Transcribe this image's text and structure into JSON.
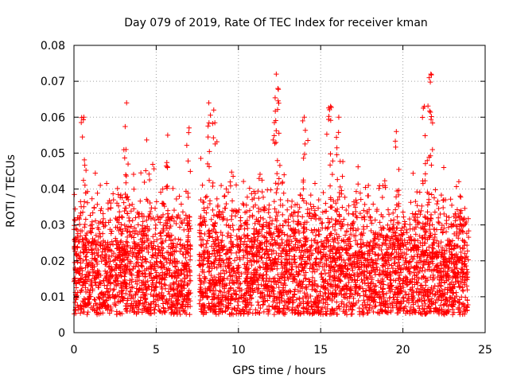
{
  "chart_data": {
    "type": "scatter",
    "title": "Day 079 of 2019, Rate Of TEC Index for receiver kman",
    "xlabel": "GPS time / hours",
    "ylabel": "ROTI / TECUs",
    "xlim": [
      0,
      25
    ],
    "ylim": [
      0,
      0.08
    ],
    "x_ticks": [
      0,
      5,
      10,
      15,
      20,
      25
    ],
    "x_tick_labels": [
      "0",
      "5",
      "10",
      "15",
      "20",
      "25"
    ],
    "y_ticks": [
      0,
      0.01,
      0.02,
      0.03,
      0.04,
      0.05,
      0.06,
      0.07,
      0.08
    ],
    "y_tick_labels": [
      "0",
      "0.01",
      "0.02",
      "0.03",
      "0.04",
      "0.05",
      "0.06",
      "0.07",
      "0.08"
    ],
    "grid": true,
    "marker": "+",
    "color": "#ff0000",
    "data_gaps_hours": [
      [
        7.1,
        7.6
      ]
    ],
    "x_range_of_data": [
      0.0,
      24.0
    ],
    "bulk_range": [
      0.005,
      0.025
    ],
    "notable_peaks": [
      {
        "x": 0.6,
        "y": 0.06
      },
      {
        "x": 3.2,
        "y": 0.064
      },
      {
        "x": 5.7,
        "y": 0.055
      },
      {
        "x": 7.0,
        "y": 0.057
      },
      {
        "x": 8.2,
        "y": 0.064
      },
      {
        "x": 8.5,
        "y": 0.062
      },
      {
        "x": 12.3,
        "y": 0.072
      },
      {
        "x": 12.4,
        "y": 0.068
      },
      {
        "x": 14.0,
        "y": 0.06
      },
      {
        "x": 15.6,
        "y": 0.063
      },
      {
        "x": 16.1,
        "y": 0.06
      },
      {
        "x": 19.6,
        "y": 0.056
      },
      {
        "x": 21.3,
        "y": 0.063
      },
      {
        "x": 21.6,
        "y": 0.071
      },
      {
        "x": 21.7,
        "y": 0.072
      }
    ]
  }
}
